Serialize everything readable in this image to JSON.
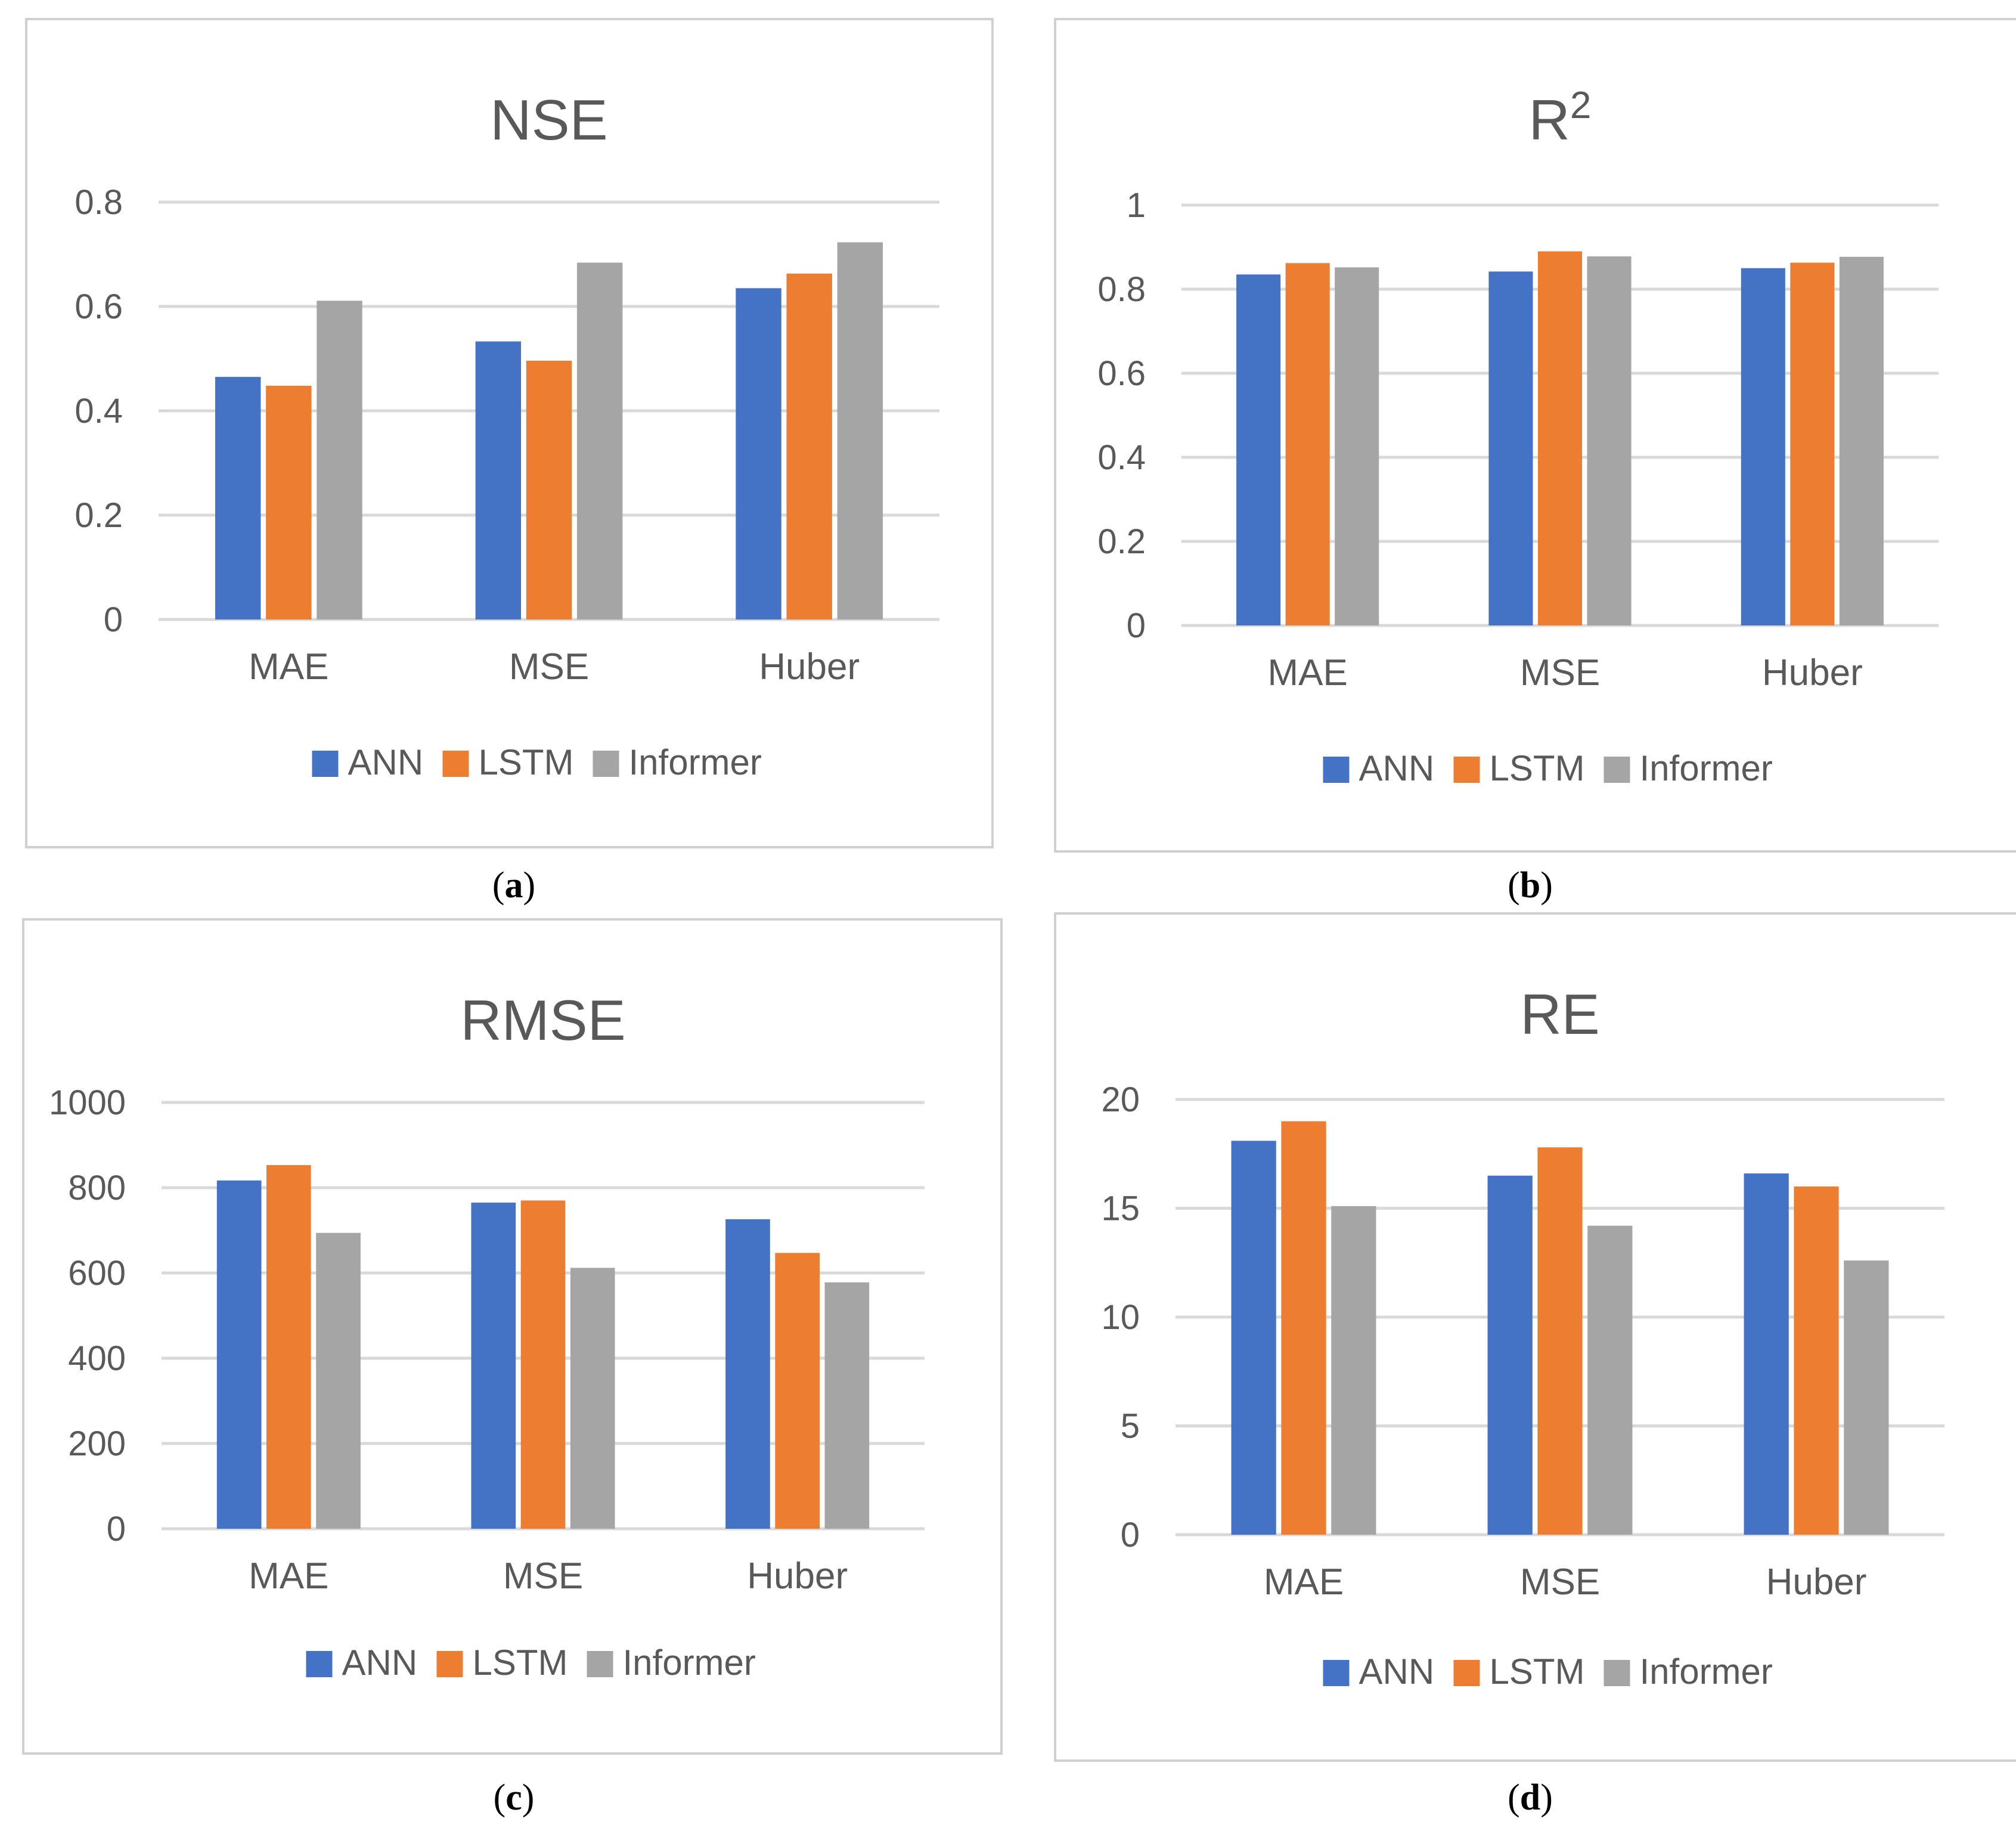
{
  "colors": {
    "ANN": "#4472c4",
    "LSTM": "#ed7d31",
    "Informer": "#a5a5a5",
    "grid": "#d9d9d9",
    "text": "#595959"
  },
  "captions": [
    "a",
    "b",
    "c",
    "d"
  ],
  "chart_data": [
    {
      "type": "bar",
      "title": "NSE",
      "categories": [
        "MAE",
        "MSE",
        "Huber"
      ],
      "series": [
        {
          "name": "ANN",
          "values": [
            0.465,
            0.533,
            0.635
          ]
        },
        {
          "name": "LSTM",
          "values": [
            0.448,
            0.496,
            0.663
          ]
        },
        {
          "name": "Informer",
          "values": [
            0.611,
            0.684,
            0.723
          ]
        }
      ],
      "yticks": [
        "0",
        "0.2",
        "0.4",
        "0.6",
        "0.8"
      ],
      "ylim": [
        0,
        0.8
      ],
      "legend": "bottom"
    },
    {
      "type": "bar",
      "title": "R",
      "title_sup": "2",
      "categories": [
        "MAE",
        "MSE",
        "Huber"
      ],
      "series": [
        {
          "name": "ANN",
          "values": [
            0.835,
            0.842,
            0.85
          ]
        },
        {
          "name": "LSTM",
          "values": [
            0.862,
            0.89,
            0.863
          ]
        },
        {
          "name": "Informer",
          "values": [
            0.852,
            0.878,
            0.877
          ]
        }
      ],
      "yticks": [
        "0",
        "0.2",
        "0.4",
        "0.6",
        "0.8",
        "1"
      ],
      "ylim": [
        0,
        1
      ],
      "legend": "bottom"
    },
    {
      "type": "bar",
      "title": "RMSE",
      "categories": [
        "MAE",
        "MSE",
        "Huber"
      ],
      "series": [
        {
          "name": "ANN",
          "values": [
            817,
            765,
            726
          ]
        },
        {
          "name": "LSTM",
          "values": [
            853,
            770,
            647
          ]
        },
        {
          "name": "Informer",
          "values": [
            694,
            612,
            578
          ]
        }
      ],
      "yticks": [
        "0",
        "200",
        "400",
        "600",
        "800",
        "1000"
      ],
      "ylim": [
        0,
        1000
      ],
      "legend": "bottom"
    },
    {
      "type": "bar",
      "title": "RE",
      "categories": [
        "MAE",
        "MSE",
        "Huber"
      ],
      "series": [
        {
          "name": "ANN",
          "values": [
            18.1,
            16.5,
            16.6
          ]
        },
        {
          "name": "LSTM",
          "values": [
            19.0,
            17.8,
            16.0
          ]
        },
        {
          "name": "Informer",
          "values": [
            15.1,
            14.2,
            12.6
          ]
        }
      ],
      "yticks": [
        "0",
        "5",
        "10",
        "15",
        "20"
      ],
      "ylim": [
        0,
        20
      ],
      "legend": "bottom"
    }
  ]
}
